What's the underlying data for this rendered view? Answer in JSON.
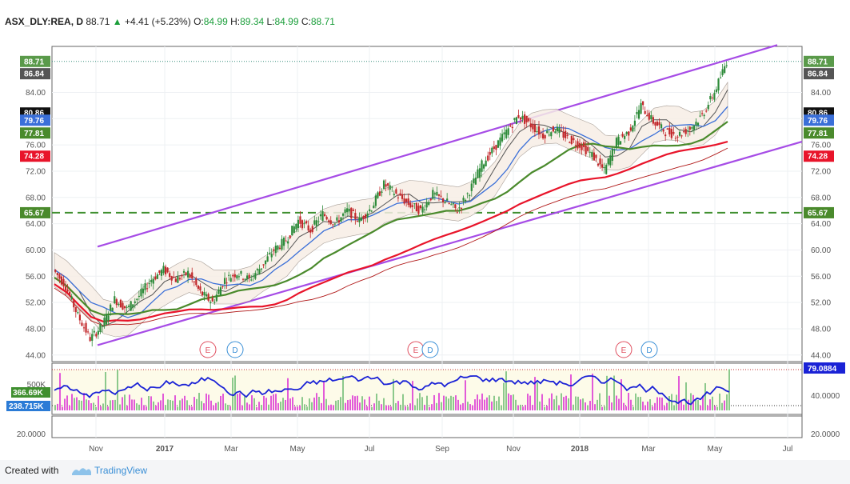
{
  "header": {
    "symbol": "ASX_DLY:REA, D",
    "last": "88.71",
    "arrow": "▲",
    "change": "+4.41 (+5.23%)",
    "o_label": "O:",
    "o_val": "84.99",
    "h_label": "H:",
    "h_val": "89.34",
    "l_label": "L:",
    "l_val": "84.99",
    "c_label": "C:",
    "c_val": "88.71"
  },
  "footer": {
    "created": "Created with",
    "brand": "TradingView"
  },
  "colors": {
    "channel": "#a64ce6",
    "sma_red": "#e8142a",
    "sma_green": "#4a8a2c",
    "sma_blue": "#3a6fd8",
    "sma_darkred": "#b01818",
    "rsi": "#1a22d6",
    "vol_pink": "#e25ad8",
    "vol_green": "#8cc98c",
    "hline": "#3f8f2f"
  },
  "chart_data": {
    "type": "candlestick",
    "x_ticks": [
      "Nov",
      "2017",
      "Mar",
      "May",
      "Jul",
      "Sep",
      "Nov",
      "2018",
      "Mar",
      "May",
      "Jul"
    ],
    "y_ticks": [
      "44.00",
      "48.00",
      "52.00",
      "56.00",
      "60.00",
      "64.00",
      "68.00",
      "72.00",
      "76.00",
      "80.00",
      "84.00"
    ],
    "ylim": [
      43,
      91
    ],
    "price_tags": [
      {
        "text": "88.71",
        "value": 88.71,
        "color": "#5a9a4a"
      },
      {
        "text": "86.84",
        "value": 86.84,
        "color": "#555555"
      },
      {
        "text": "80.86",
        "value": 80.86,
        "color": "#111111"
      },
      {
        "text": "79.76",
        "value": 79.76,
        "color": "#3a6fd8"
      },
      {
        "text": "77.81",
        "value": 77.81,
        "color": "#4a8a2c"
      },
      {
        "text": "74.28",
        "value": 74.28,
        "color": "#e8142a"
      },
      {
        "text": "65.67",
        "value": 65.67,
        "color": "#4a8a2c"
      }
    ],
    "horizontal_line": 65.67,
    "channel_upper": [
      {
        "x": "Nov",
        "y": 60.5
      },
      {
        "x": "end",
        "y": 91.2
      }
    ],
    "channel_lower": [
      {
        "x": "Nov",
        "y": 45.5
      },
      {
        "x": "end",
        "y": 76.5
      }
    ],
    "events": [
      {
        "x": "Jan",
        "label": "E",
        "color": "#e05060"
      },
      {
        "x": "Feb",
        "label": "D",
        "color": "#3a8fd6"
      },
      {
        "x": "Aug",
        "label": "E",
        "color": "#e05060"
      },
      {
        "x": "Aug",
        "label": "D",
        "color": "#3a8fd6"
      },
      {
        "x": "2018-02",
        "label": "E",
        "color": "#e05060"
      },
      {
        "x": "2018-02",
        "label": "D",
        "color": "#3a8fd6"
      }
    ],
    "price_path": [
      [
        "Oct",
        57.0
      ],
      [
        "Oct",
        54.5
      ],
      [
        "Nov",
        50.0
      ],
      [
        "Nov",
        46.5
      ],
      [
        "Nov",
        48.5
      ],
      [
        "Nov",
        52.5
      ],
      [
        "Dec",
        51.0
      ],
      [
        "Dec",
        53.0
      ],
      [
        "Dec",
        55.5
      ],
      [
        "2017",
        57.0
      ],
      [
        "Jan",
        55.5
      ],
      [
        "Jan",
        56.5
      ],
      [
        "Feb",
        53.5
      ],
      [
        "Feb",
        52.0
      ],
      [
        "Feb",
        55.5
      ],
      [
        "Mar",
        56.5
      ],
      [
        "Mar",
        55.5
      ],
      [
        "Apr",
        57.5
      ],
      [
        "Apr",
        60.0
      ],
      [
        "May",
        61.5
      ],
      [
        "May",
        64.5
      ],
      [
        "May",
        63.0
      ],
      [
        "Jun",
        65.5
      ],
      [
        "Jun",
        64.0
      ],
      [
        "Jun",
        66.0
      ],
      [
        "Jul",
        64.5
      ],
      [
        "Jul",
        66.5
      ],
      [
        "Jul",
        70.0
      ],
      [
        "Aug",
        68.5
      ],
      [
        "Aug",
        67.0
      ],
      [
        "Aug",
        66.0
      ],
      [
        "Sep",
        68.5
      ],
      [
        "Sep",
        67.5
      ],
      [
        "Sep",
        66.0
      ],
      [
        "Oct",
        69.0
      ],
      [
        "Oct",
        73.0
      ],
      [
        "Oct",
        75.5
      ],
      [
        "Nov",
        78.0
      ],
      [
        "Nov",
        80.5
      ],
      [
        "Nov",
        79.0
      ],
      [
        "Dec",
        77.5
      ],
      [
        "Dec",
        78.5
      ],
      [
        "2018",
        77.0
      ],
      [
        "Jan",
        76.0
      ],
      [
        "Feb",
        74.5
      ],
      [
        "Feb",
        72.0
      ],
      [
        "Feb",
        76.5
      ],
      [
        "Mar",
        78.0
      ],
      [
        "Mar",
        82.0
      ],
      [
        "Mar",
        79.5
      ],
      [
        "Apr",
        78.0
      ],
      [
        "Apr",
        77.5
      ],
      [
        "Apr",
        78.5
      ],
      [
        "May",
        80.5
      ],
      [
        "May",
        84.0
      ],
      [
        "May",
        88.71
      ]
    ],
    "volume_tags": [
      {
        "text": "366.69K",
        "color": "#3f8f2f"
      },
      {
        "text": "238.715K",
        "color": "#2b7bd6"
      }
    ],
    "rsi_tag": {
      "text": "79.0884",
      "color": "#1a22d6"
    },
    "lower_ticks_left": [
      "500K",
      "20.0000"
    ],
    "lower_ticks_right": [
      "40.0000",
      "20.0000"
    ]
  }
}
